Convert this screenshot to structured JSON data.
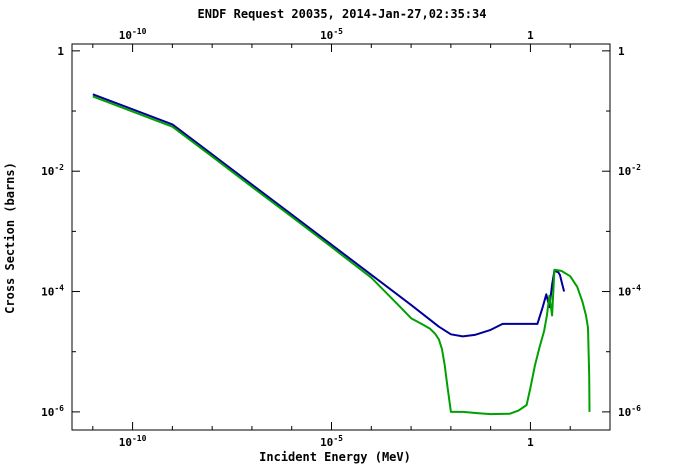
{
  "chart_data": {
    "type": "line",
    "title": "ENDF Request 20035, 2014-Jan-27,02:35:34",
    "xlabel": "Incident Energy (MeV)",
    "ylabel": "Cross Section (barns)",
    "x_scale": "log",
    "y_scale": "log",
    "xlim": [
      3e-12,
      100
    ],
    "ylim": [
      5e-07,
      1.3
    ],
    "grid": false,
    "x_ticks": [
      {
        "value": 1e-10,
        "base": "10",
        "exp": "-10"
      },
      {
        "value": 1e-05,
        "base": "10",
        "exp": "-5"
      },
      {
        "value": 1,
        "base": "1",
        "exp": ""
      }
    ],
    "y_ticks": [
      {
        "value": 1,
        "base": "1",
        "exp": ""
      },
      {
        "value": 0.01,
        "base": "10",
        "exp": "-2"
      },
      {
        "value": 0.0001,
        "base": "10",
        "exp": "-4"
      },
      {
        "value": 1e-06,
        "base": "10",
        "exp": "-6"
      }
    ],
    "series": [
      {
        "color": "#000099",
        "x": [
          1e-11,
          1e-09,
          1e-08,
          1e-07,
          1e-06,
          1e-05,
          0.0001,
          0.001,
          0.005,
          0.01,
          0.02,
          0.04,
          0.1,
          0.2,
          0.5,
          1.0,
          1.5,
          2.0,
          2.5,
          3.0,
          3.5,
          4.0,
          5.0,
          5.5,
          6.0,
          7.0
        ],
        "y": [
          0.19,
          0.06,
          0.019,
          0.006,
          0.0019,
          0.0006,
          0.00019,
          6e-05,
          2.6e-05,
          1.95e-05,
          1.8e-05,
          1.9e-05,
          2.3e-05,
          2.9e-05,
          2.9e-05,
          2.9e-05,
          2.9e-05,
          5.3e-05,
          9e-05,
          5.5e-05,
          0.00013,
          0.00022,
          0.00021,
          0.00019,
          0.00015,
          0.0001
        ]
      },
      {
        "color": "#00a000",
        "x": [
          1e-11,
          1e-09,
          1e-08,
          1e-07,
          1e-06,
          1e-05,
          0.0001,
          0.0005,
          0.001,
          0.002,
          0.003,
          0.004,
          0.005,
          0.006,
          0.007,
          0.008,
          0.01,
          0.02,
          0.05,
          0.1,
          0.3,
          0.5,
          0.8,
          1.0,
          1.3,
          1.7,
          2.2,
          2.6,
          3.0,
          3.5,
          4.0,
          6.0,
          10,
          15,
          20,
          25,
          28,
          30,
          30.5
        ],
        "y": [
          0.175,
          0.055,
          0.0175,
          0.0055,
          0.00175,
          0.00055,
          0.00017,
          5.8e-05,
          3.6e-05,
          2.8e-05,
          2.4e-05,
          2e-05,
          1.6e-05,
          1.1e-05,
          6e-06,
          3e-06,
          1e-06,
          1e-06,
          9.5e-07,
          9.2e-07,
          9.3e-07,
          1.05e-06,
          1.3e-06,
          2.5e-06,
          6e-06,
          1.2e-05,
          2.2e-05,
          4e-05,
          8.5e-05,
          4e-05,
          0.00023,
          0.00022,
          0.00018,
          0.00012,
          7e-05,
          4e-05,
          2.5e-05,
          4e-06,
          1e-06
        ]
      }
    ]
  }
}
